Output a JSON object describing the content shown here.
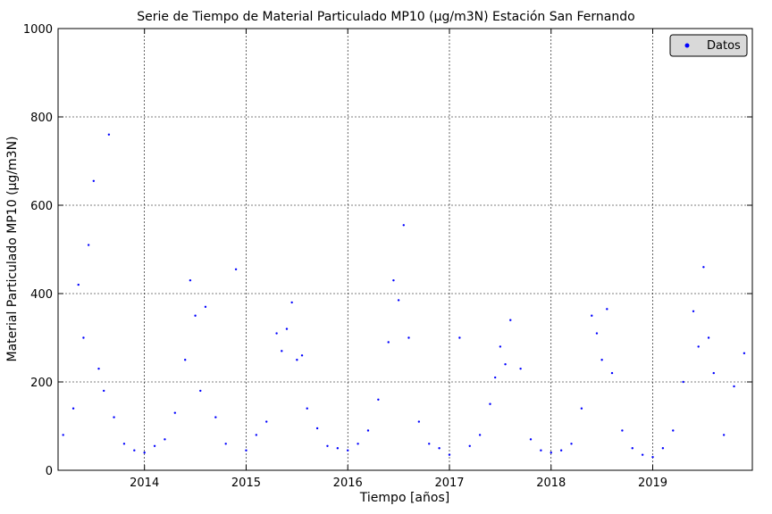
{
  "chart_data": {
    "type": "scatter",
    "title": "Serie de Tiempo de Material Particulado MP10 (µg/m3N) Estación San Fernando",
    "xlabel": "Tiempo [años]",
    "ylabel": "Material Particulado MP10 (µg/m3N)",
    "xlim": [
      2013.15,
      2019.98
    ],
    "ylim": [
      0,
      1000
    ],
    "xticks": [
      2014,
      2015,
      2016,
      2017,
      2018,
      2019
    ],
    "xtick_labels": [
      "2014",
      "2015",
      "2016",
      "2017",
      "2018",
      "2019"
    ],
    "yticks": [
      0,
      200,
      400,
      600,
      800,
      1000
    ],
    "ytick_labels": [
      "0",
      "200",
      "400",
      "600",
      "800",
      "1000"
    ],
    "grid": true,
    "legend_position": "top-right",
    "marker_color": "#0000ff",
    "series": [
      {
        "name": "Datos",
        "x": [
          2013.2,
          2013.3,
          2013.35,
          2013.4,
          2013.45,
          2013.5,
          2013.55,
          2013.6,
          2013.65,
          2013.7,
          2013.8,
          2013.9,
          2014.0,
          2014.1,
          2014.2,
          2014.3,
          2014.4,
          2014.45,
          2014.5,
          2014.55,
          2014.6,
          2014.7,
          2014.8,
          2014.9,
          2015.0,
          2015.1,
          2015.2,
          2015.3,
          2015.35,
          2015.4,
          2015.45,
          2015.5,
          2015.55,
          2015.6,
          2015.7,
          2015.8,
          2015.9,
          2016.0,
          2016.1,
          2016.2,
          2016.3,
          2016.4,
          2016.45,
          2016.5,
          2016.55,
          2016.6,
          2016.7,
          2016.8,
          2016.9,
          2017.0,
          2017.1,
          2017.2,
          2017.3,
          2017.4,
          2017.45,
          2017.5,
          2017.55,
          2017.6,
          2017.7,
          2017.8,
          2017.9,
          2018.0,
          2018.1,
          2018.2,
          2018.3,
          2018.4,
          2018.45,
          2018.5,
          2018.55,
          2018.6,
          2018.7,
          2018.8,
          2018.9,
          2019.0,
          2019.1,
          2019.2,
          2019.3,
          2019.4,
          2019.45,
          2019.5,
          2019.55,
          2019.6,
          2019.7,
          2019.8,
          2019.9
        ],
        "y": [
          80,
          140,
          420,
          300,
          510,
          655,
          230,
          180,
          760,
          120,
          60,
          45,
          40,
          55,
          70,
          130,
          250,
          430,
          350,
          180,
          370,
          120,
          60,
          455,
          45,
          80,
          110,
          310,
          270,
          320,
          380,
          250,
          260,
          140,
          95,
          55,
          50,
          45,
          60,
          90,
          160,
          290,
          430,
          385,
          555,
          300,
          110,
          60,
          50,
          35,
          300,
          55,
          80,
          150,
          210,
          280,
          240,
          340,
          230,
          70,
          45,
          40,
          45,
          60,
          140,
          350,
          310,
          250,
          365,
          220,
          90,
          50,
          35,
          30,
          50,
          90,
          200,
          360,
          280,
          460,
          300,
          220,
          80,
          190,
          265
        ]
      }
    ]
  }
}
